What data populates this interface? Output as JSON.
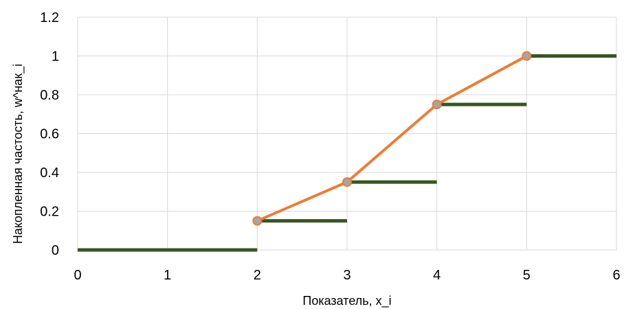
{
  "chart_data": {
    "type": "line",
    "title": "",
    "xlabel": "Показатель, x_i",
    "ylabel": "Накопленная частость, w^нак_i",
    "xlim": [
      0,
      6
    ],
    "ylim": [
      0,
      1.2
    ],
    "x_ticks": [
      "0",
      "1",
      "2",
      "3",
      "4",
      "5",
      "6"
    ],
    "y_ticks": [
      "0",
      "0.2",
      "0.4",
      "0.6",
      "0.8",
      "1",
      "1.2"
    ],
    "grid": true,
    "legend": "none",
    "series": [
      {
        "kind": "line",
        "color": "#ED7D31",
        "marker_color": "#A5A5A5",
        "points": [
          [
            2,
            0.15
          ],
          [
            3,
            0.35
          ],
          [
            4,
            0.75
          ],
          [
            5,
            1
          ]
        ]
      },
      {
        "kind": "step",
        "color": "#375623",
        "segments": [
          [
            0,
            2,
            0
          ],
          [
            2,
            3,
            0.15
          ],
          [
            3,
            4,
            0.35
          ],
          [
            4,
            5,
            0.75
          ],
          [
            5,
            6,
            1
          ]
        ]
      }
    ]
  }
}
